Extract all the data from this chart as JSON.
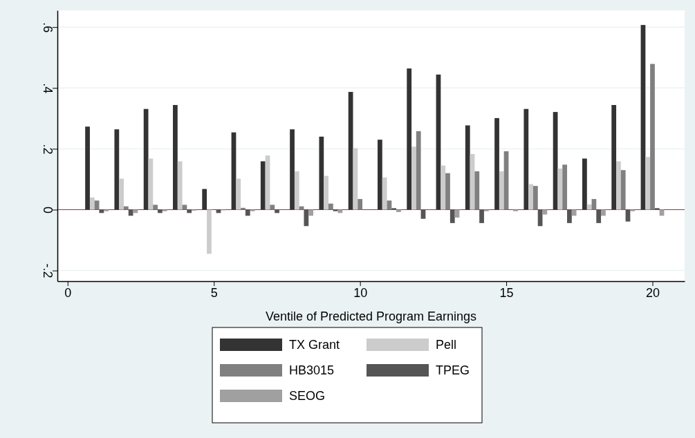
{
  "chart_data": {
    "type": "bar",
    "xlabel": "Ventile of Predicted Program Earnings",
    "x": [
      1,
      2,
      3,
      4,
      5,
      6,
      7,
      8,
      9,
      10,
      11,
      12,
      13,
      14,
      15,
      16,
      17,
      18,
      19,
      20
    ],
    "series": [
      {
        "name": "TX Grant",
        "color": "#333333",
        "values": [
          0.273,
          0.264,
          0.331,
          0.344,
          0.068,
          0.254,
          0.159,
          0.264,
          0.24,
          0.387,
          0.23,
          0.464,
          0.444,
          0.277,
          0.301,
          0.331,
          0.321,
          0.168,
          0.344,
          0.607
        ]
      },
      {
        "name": "Pell",
        "color": "#cccccc",
        "values": [
          0.04,
          0.102,
          0.168,
          0.159,
          -0.145,
          0.102,
          0.178,
          0.126,
          0.111,
          0.202,
          0.106,
          0.207,
          0.145,
          0.183,
          0.126,
          0.084,
          0.135,
          0.017,
          0.159,
          0.173
        ]
      },
      {
        "name": "HB3015",
        "color": "#808080",
        "values": [
          0.03,
          0.011,
          0.016,
          0.016,
          null,
          0.006,
          0.016,
          0.011,
          0.02,
          0.035,
          0.03,
          0.258,
          0.12,
          0.126,
          0.192,
          0.078,
          0.148,
          0.035,
          0.13,
          0.479
        ]
      },
      {
        "name": "TPEG",
        "color": "#555555",
        "values": [
          -0.011,
          -0.02,
          -0.011,
          -0.011,
          -0.011,
          -0.02,
          -0.011,
          -0.054,
          -0.005,
          null,
          0.005,
          -0.03,
          -0.044,
          -0.044,
          0,
          -0.054,
          -0.044,
          -0.044,
          -0.039,
          0.005
        ]
      },
      {
        "name": "SEOG",
        "color": "#a0a0a0",
        "values": [
          -0.005,
          -0.011,
          -0.005,
          -0.003,
          -0.002,
          -0.005,
          null,
          -0.02,
          -0.011,
          0,
          -0.008,
          0,
          -0.026,
          -0.005,
          -0.005,
          -0.016,
          -0.02,
          -0.02,
          -0.005,
          -0.02
        ]
      }
    ],
    "xlim": [
      -0.35,
      21.1
    ],
    "xticks": [
      0,
      5,
      10,
      15,
      20
    ],
    "ylim": [
      -0.235,
      0.655
    ],
    "yticks": [
      {
        "value": -0.2,
        "label": "-.2"
      },
      0,
      {
        "value": 0.2,
        "label": ".2"
      },
      {
        "value": 0.4,
        "label": ".4"
      },
      {
        "value": 0.6,
        "label": ".6"
      }
    ],
    "grid": "y",
    "legend": "bottom",
    "ref_lines": [
      {
        "axis": "y",
        "value": 0,
        "color": "#e0143c"
      }
    ]
  }
}
